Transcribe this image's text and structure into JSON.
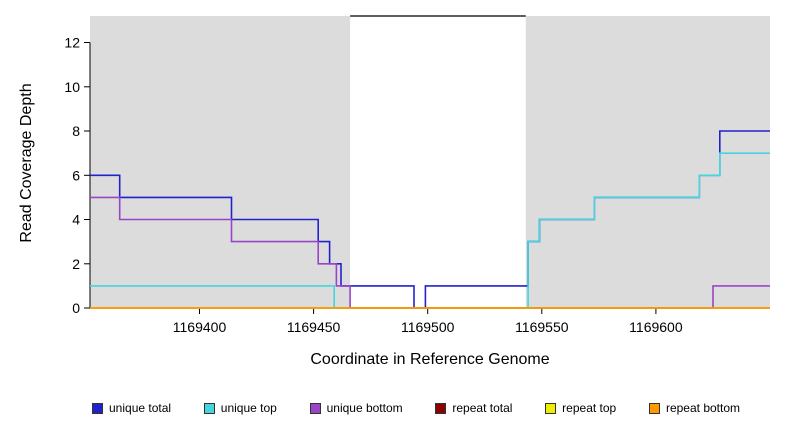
{
  "chart_data": {
    "type": "line",
    "step": true,
    "title": "",
    "xlabel": "Coordinate in Reference Genome",
    "ylabel": "Read Coverage Depth",
    "x_range": [
      1169352,
      1169650
    ],
    "y_range": [
      0,
      13.2
    ],
    "x_ticks": [
      1169400,
      1169450,
      1169500,
      1169550,
      1169600
    ],
    "y_ticks": [
      0,
      2,
      4,
      6,
      8,
      10,
      12
    ],
    "grid": false,
    "legend_position": "bottom",
    "background_regions": [
      {
        "name": "shaded-left",
        "x1": 1169352,
        "x2": 1169466,
        "color": "#DCDCDC"
      },
      {
        "name": "shaded-right",
        "x1": 1169543,
        "x2": 1169650,
        "color": "#DCDCDC"
      }
    ],
    "top_segment": {
      "x1": 1169466,
      "x2": 1169543,
      "y": 13.2,
      "color": "#000000"
    },
    "series": [
      {
        "name": "unique total",
        "color": "#2222CC",
        "points": [
          [
            1169352,
            6
          ],
          [
            1169365,
            5
          ],
          [
            1169414,
            4
          ],
          [
            1169452,
            3
          ],
          [
            1169457,
            2
          ],
          [
            1169462,
            1
          ],
          [
            1169494,
            0
          ],
          [
            1169499,
            1
          ],
          [
            1169544,
            3
          ],
          [
            1169549,
            4
          ],
          [
            1169573,
            5
          ],
          [
            1169619,
            6
          ],
          [
            1169628,
            8
          ],
          [
            1169650,
            8
          ]
        ]
      },
      {
        "name": "unique top",
        "color": "#45D5DD",
        "points": [
          [
            1169352,
            1
          ],
          [
            1169459,
            0
          ],
          [
            1169544,
            3
          ],
          [
            1169549,
            4
          ],
          [
            1169573,
            5
          ],
          [
            1169619,
            6
          ],
          [
            1169628,
            7
          ],
          [
            1169650,
            7
          ]
        ]
      },
      {
        "name": "unique bottom",
        "color": "#9945C9",
        "points": [
          [
            1169352,
            5
          ],
          [
            1169365,
            4
          ],
          [
            1169414,
            3
          ],
          [
            1169452,
            2
          ],
          [
            1169460,
            1
          ],
          [
            1169466,
            0
          ],
          [
            1169625,
            1
          ],
          [
            1169650,
            1
          ]
        ]
      },
      {
        "name": "repeat total",
        "color": "#8B0000",
        "points": [
          [
            1169352,
            0
          ],
          [
            1169650,
            0
          ]
        ]
      },
      {
        "name": "repeat top",
        "color": "#EEEE00",
        "points": [
          [
            1169352,
            0
          ],
          [
            1169650,
            0
          ]
        ]
      },
      {
        "name": "repeat bottom",
        "color": "#FF9900",
        "points": [
          [
            1169352,
            0
          ],
          [
            1169650,
            0
          ]
        ]
      }
    ],
    "legend": [
      {
        "label": "unique total",
        "color": "#2222CC"
      },
      {
        "label": "unique top",
        "color": "#45D5DD"
      },
      {
        "label": "unique bottom",
        "color": "#9945C9"
      },
      {
        "label": "repeat total",
        "color": "#8B0000"
      },
      {
        "label": "repeat top",
        "color": "#EEEE00"
      },
      {
        "label": "repeat bottom",
        "color": "#FF9900"
      }
    ]
  }
}
